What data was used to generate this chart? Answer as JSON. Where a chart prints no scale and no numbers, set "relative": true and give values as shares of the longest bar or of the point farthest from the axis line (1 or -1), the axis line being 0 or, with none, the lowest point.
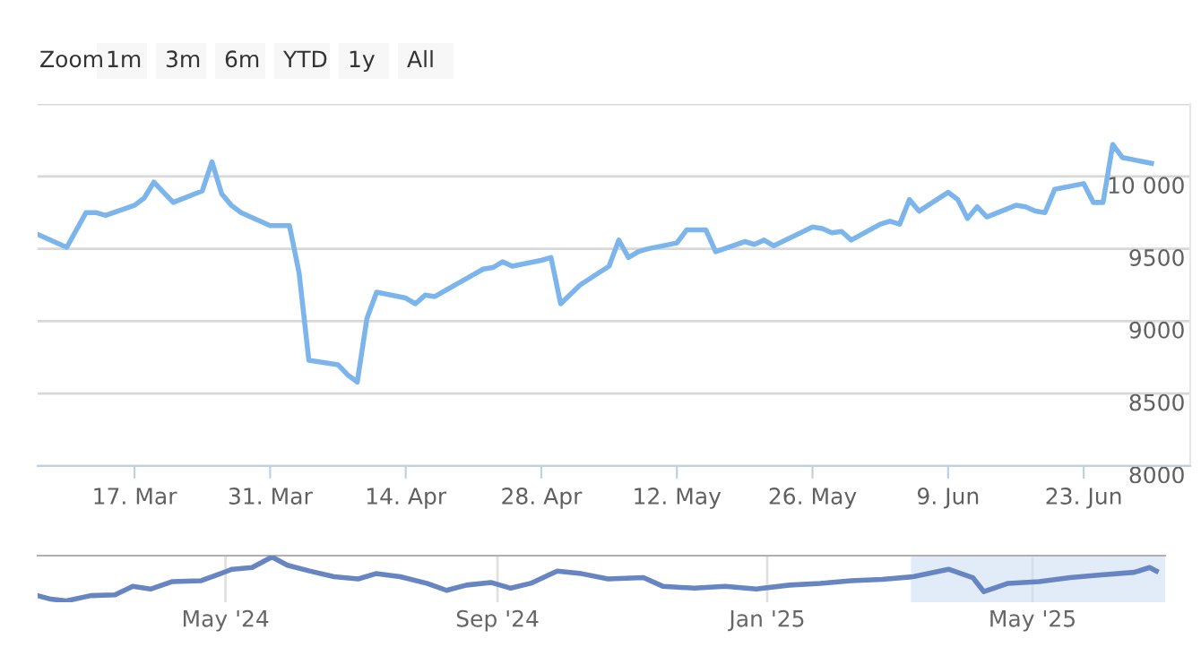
{
  "chart_data": [
    {
      "type": "line",
      "color": "#7cb5ec",
      "grid": "y",
      "legend": false,
      "annotations": [
        "Zoom",
        "1m",
        "3m",
        "6m",
        "YTD",
        "1y",
        "All"
      ],
      "xlim": [
        "2025-03-07",
        "2025-07-04"
      ],
      "xticks": [
        {
          "value": "2025-03-17",
          "label": "17. Mar"
        },
        {
          "value": "2025-03-31",
          "label": "31. Mar"
        },
        {
          "value": "2025-04-14",
          "label": "14. Apr"
        },
        {
          "value": "2025-04-28",
          "label": "28. Apr"
        },
        {
          "value": "2025-05-12",
          "label": "12. May"
        },
        {
          "value": "2025-05-26",
          "label": "26. May"
        },
        {
          "value": "2025-06-09",
          "label": "9. Jun"
        },
        {
          "value": "2025-06-23",
          "label": "23. Jun"
        }
      ],
      "ylim": [
        8000,
        10500
      ],
      "yticks": [
        8000,
        8500,
        9000,
        9500,
        {
          "value": 10000,
          "label": "10 000"
        },
        {
          "value": 10500,
          "label": null
        }
      ],
      "x": [
        "2025-03-07",
        "2025-03-10",
        "2025-03-12",
        "2025-03-13",
        "2025-03-14",
        "2025-03-17",
        "2025-03-18",
        "2025-03-19",
        "2025-03-20",
        "2025-03-21",
        "2025-03-24",
        "2025-03-25",
        "2025-03-26",
        "2025-03-27",
        "2025-03-28",
        "2025-03-31",
        "2025-04-02",
        "2025-04-03",
        "2025-04-04",
        "2025-04-07",
        "2025-04-08",
        "2025-04-09",
        "2025-04-10",
        "2025-04-11",
        "2025-04-14",
        "2025-04-15",
        "2025-04-16",
        "2025-04-17",
        "2025-04-22",
        "2025-04-23",
        "2025-04-24",
        "2025-04-25",
        "2025-04-28",
        "2025-04-29",
        "2025-04-30",
        "2025-05-02",
        "2025-05-05",
        "2025-05-06",
        "2025-05-07",
        "2025-05-08",
        "2025-05-09",
        "2025-05-12",
        "2025-05-13",
        "2025-05-15",
        "2025-05-16",
        "2025-05-19",
        "2025-05-20",
        "2025-05-21",
        "2025-05-22",
        "2025-05-26",
        "2025-05-27",
        "2025-05-28",
        "2025-05-29",
        "2025-05-30",
        "2025-06-02",
        "2025-06-03",
        "2025-06-04",
        "2025-06-05",
        "2025-06-06",
        "2025-06-09",
        "2025-06-10",
        "2025-06-11",
        "2025-06-12",
        "2025-06-13",
        "2025-06-16",
        "2025-06-17",
        "2025-06-18",
        "2025-06-19",
        "2025-06-20",
        "2025-06-23",
        "2025-06-24",
        "2025-06-25",
        "2025-06-26",
        "2025-06-27",
        "2025-06-30"
      ],
      "values": [
        9600,
        9510,
        9750,
        9750,
        9730,
        9800,
        9850,
        9960,
        9890,
        9820,
        9900,
        10100,
        9880,
        9800,
        9750,
        9660,
        9660,
        9330,
        8730,
        8700,
        8630,
        8580,
        9020,
        9200,
        9160,
        9120,
        9180,
        9170,
        9360,
        9370,
        9410,
        9380,
        9420,
        9440,
        9120,
        9250,
        9380,
        9560,
        9440,
        9480,
        9500,
        9540,
        9630,
        9630,
        9480,
        9550,
        9530,
        9560,
        9520,
        9650,
        9640,
        9610,
        9620,
        9560,
        9670,
        9690,
        9670,
        9840,
        9760,
        9890,
        9840,
        9710,
        9790,
        9720,
        9800,
        9790,
        9760,
        9750,
        9910,
        9950,
        9820,
        9820,
        10220,
        10130,
        10090
      ]
    },
    {
      "type": "line",
      "color": "#6685c2",
      "relative": true,
      "grid": "x",
      "tick_labels": "x",
      "xlim": [
        "2024-02-06",
        "2025-06-30"
      ],
      "xticks": [
        {
          "value": "2024-05-01",
          "label": "May '24"
        },
        {
          "value": "2024-09-01",
          "label": "Sep '24"
        },
        {
          "value": "2025-01-01",
          "label": "Jan '25"
        },
        {
          "value": "2025-05-01",
          "label": "May '25"
        }
      ],
      "bands": [
        {
          "axis": "x",
          "from": "2025-03-07",
          "to": "2025-06-30",
          "color": "#cfe0f5"
        }
      ],
      "x": [
        "2024-02-06",
        "2024-02-12",
        "2024-02-19",
        "2024-03-01",
        "2024-03-12",
        "2024-03-20",
        "2024-03-28",
        "2024-04-07",
        "2024-04-20",
        "2024-04-27",
        "2024-05-04",
        "2024-05-13",
        "2024-05-22",
        "2024-05-29",
        "2024-06-08",
        "2024-06-19",
        "2024-06-30",
        "2024-07-08",
        "2024-07-19",
        "2024-07-31",
        "2024-08-09",
        "2024-08-18",
        "2024-08-29",
        "2024-09-07",
        "2024-09-16",
        "2024-09-28",
        "2024-10-09",
        "2024-10-21",
        "2024-11-06",
        "2024-11-15",
        "2024-11-29",
        "2024-12-13",
        "2024-12-27",
        "2025-01-11",
        "2025-01-25",
        "2025-02-08",
        "2025-02-22",
        "2025-03-08",
        "2025-03-24",
        "2025-04-04",
        "2025-04-09",
        "2025-04-20",
        "2025-05-04",
        "2025-05-18",
        "2025-06-01",
        "2025-06-16",
        "2025-06-23",
        "2025-06-26"
      ],
      "values": [
        0.12,
        0.04,
        0,
        0.12,
        0.14,
        0.33,
        0.27,
        0.44,
        0.46,
        0.59,
        0.72,
        0.76,
        1,
        0.81,
        0.68,
        0.55,
        0.5,
        0.62,
        0.55,
        0.4,
        0.24,
        0.36,
        0.42,
        0.29,
        0.4,
        0.68,
        0.62,
        0.5,
        0.53,
        0.33,
        0.29,
        0.33,
        0.27,
        0.36,
        0.4,
        0.46,
        0.49,
        0.55,
        0.72,
        0.53,
        0.21,
        0.4,
        0.44,
        0.53,
        0.59,
        0.65,
        0.76,
        0.68
      ]
    }
  ]
}
